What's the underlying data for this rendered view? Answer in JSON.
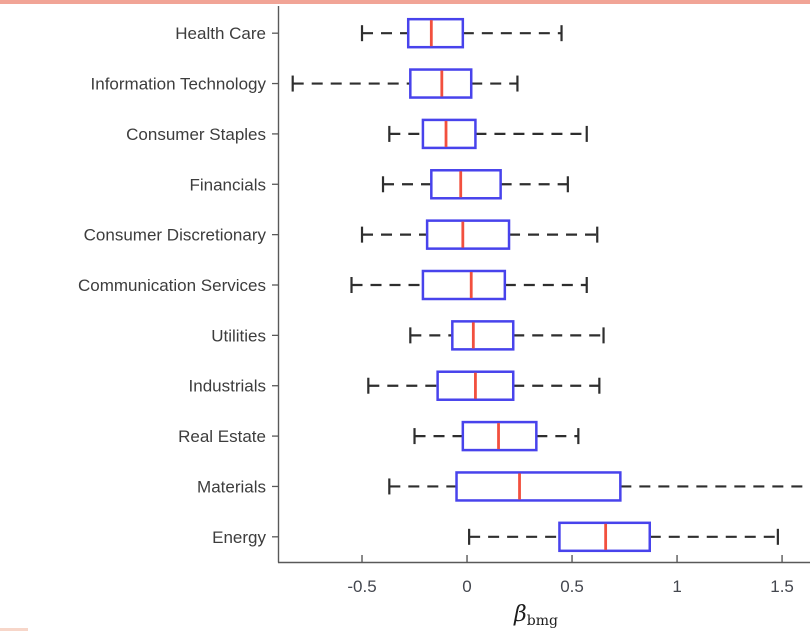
{
  "page": {
    "background": "#ffffff"
  },
  "decorations": {
    "top_rule_color": "#f1a496",
    "bottom_fragment_color": "#f7d6c9"
  },
  "chart_data": {
    "type": "boxplot",
    "orientation": "horizontal",
    "title": "",
    "xlabel": {
      "symbol": "β",
      "subscript": "bmg"
    },
    "ylabel": "",
    "xlim": [
      -0.9,
      1.633
    ],
    "xticks": [
      -0.5,
      0,
      0.5,
      1,
      1.5
    ],
    "xtick_labels": [
      "-0.5",
      "0",
      "0.5",
      "1",
      "1.5"
    ],
    "grid": false,
    "legend": null,
    "colors": {
      "box": "#4843ec",
      "median": "#f2503e",
      "whisker": "#2e2e2e",
      "cap": "#2e2e2e",
      "axis": "#595959",
      "label_text": "#3d3d3d",
      "tick_text": "#44474f"
    },
    "series": [
      {
        "category": "Health Care",
        "whisker_low": -0.5,
        "q1": -0.28,
        "median": -0.17,
        "q3": -0.02,
        "whisker_high": 0.45,
        "high_cap": true
      },
      {
        "category": "Information Technology",
        "whisker_low": -0.83,
        "q1": -0.27,
        "median": -0.12,
        "q3": 0.02,
        "whisker_high": 0.24,
        "high_cap": true
      },
      {
        "category": "Consumer Staples",
        "whisker_low": -0.37,
        "q1": -0.21,
        "median": -0.1,
        "q3": 0.04,
        "whisker_high": 0.57,
        "high_cap": true
      },
      {
        "category": "Financials",
        "whisker_low": -0.4,
        "q1": -0.17,
        "median": -0.03,
        "q3": 0.16,
        "whisker_high": 0.48,
        "high_cap": true
      },
      {
        "category": "Consumer Discretionary",
        "whisker_low": -0.5,
        "q1": -0.19,
        "median": -0.02,
        "q3": 0.2,
        "whisker_high": 0.62,
        "high_cap": true
      },
      {
        "category": "Communication Services",
        "whisker_low": -0.55,
        "q1": -0.21,
        "median": 0.02,
        "q3": 0.18,
        "whisker_high": 0.57,
        "high_cap": true
      },
      {
        "category": "Utilities",
        "whisker_low": -0.27,
        "q1": -0.07,
        "median": 0.03,
        "q3": 0.22,
        "whisker_high": 0.65,
        "high_cap": true
      },
      {
        "category": "Industrials",
        "whisker_low": -0.47,
        "q1": -0.14,
        "median": 0.04,
        "q3": 0.22,
        "whisker_high": 0.63,
        "high_cap": true
      },
      {
        "category": "Real Estate",
        "whisker_low": -0.25,
        "q1": -0.02,
        "median": 0.15,
        "q3": 0.33,
        "whisker_high": 0.53,
        "high_cap": true
      },
      {
        "category": "Materials",
        "whisker_low": -0.37,
        "q1": -0.05,
        "median": 0.25,
        "q3": 0.73,
        "whisker_high": 1.64,
        "high_cap": false
      },
      {
        "category": "Energy",
        "whisker_low": 0.01,
        "q1": 0.44,
        "median": 0.66,
        "q3": 0.87,
        "whisker_high": 1.48,
        "high_cap": true
      }
    ]
  }
}
